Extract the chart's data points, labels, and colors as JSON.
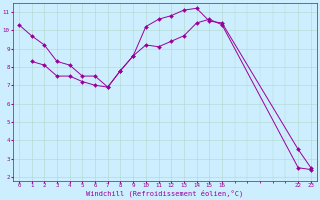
{
  "xlabel": "Windchill (Refroidissement éolien,°C)",
  "bg_color": "#cceeff",
  "grid_color": "#b0d8c8",
  "line_color": "#990099",
  "line1_x": [
    0,
    1,
    2,
    3,
    4,
    5,
    6,
    7,
    8,
    9,
    10,
    11,
    12,
    13,
    14,
    15,
    16,
    22,
    23
  ],
  "line1_y": [
    10.3,
    9.7,
    9.2,
    8.3,
    8.1,
    7.5,
    7.5,
    6.9,
    7.8,
    8.6,
    10.2,
    10.6,
    10.8,
    11.1,
    11.2,
    10.5,
    10.4,
    3.5,
    2.5
  ],
  "line2_x": [
    1,
    2,
    3,
    4,
    5,
    6,
    7,
    8,
    9,
    10,
    11,
    12,
    13,
    14,
    15,
    16,
    22,
    23
  ],
  "line2_y": [
    8.3,
    8.1,
    7.5,
    7.5,
    7.2,
    7.0,
    6.9,
    7.8,
    8.6,
    9.2,
    9.1,
    9.4,
    9.7,
    10.4,
    10.6,
    10.3,
    2.5,
    2.4
  ],
  "xlim": [
    -0.5,
    23.5
  ],
  "ylim": [
    1.8,
    11.5
  ],
  "xticks": [
    0,
    1,
    2,
    3,
    4,
    5,
    6,
    7,
    8,
    9,
    10,
    11,
    12,
    13,
    14,
    15,
    16,
    22,
    23
  ],
  "yticks": [
    2,
    3,
    4,
    5,
    6,
    7,
    8,
    9,
    10,
    11
  ],
  "tick_fontsize": 4.2,
  "xlabel_fontsize": 5.0
}
